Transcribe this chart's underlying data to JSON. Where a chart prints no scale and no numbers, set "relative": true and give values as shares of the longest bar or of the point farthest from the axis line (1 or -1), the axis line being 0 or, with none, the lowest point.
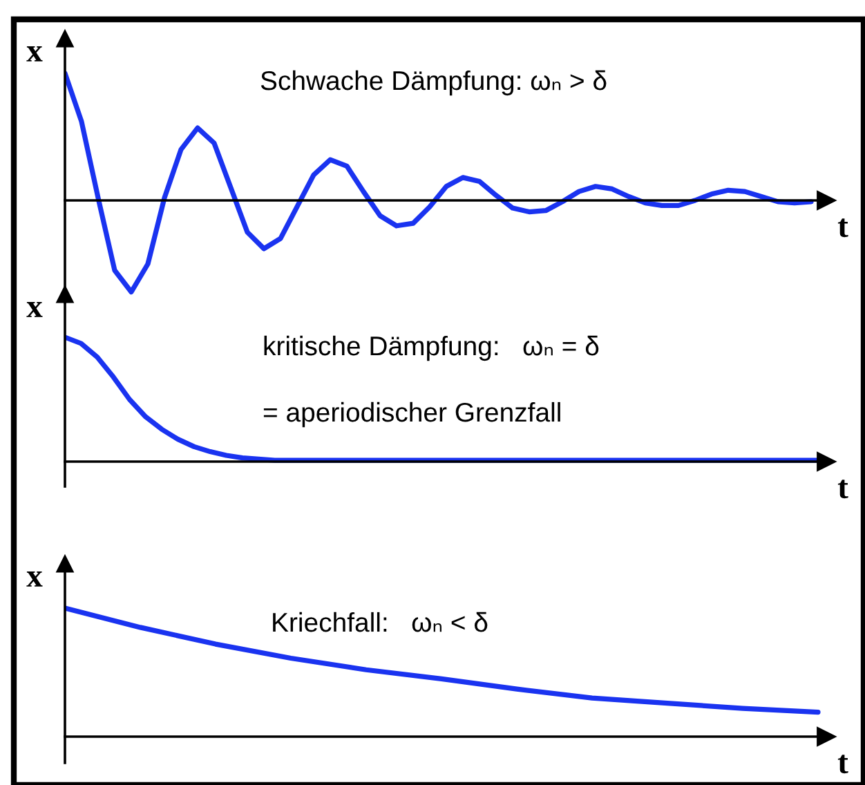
{
  "chart_data": [
    {
      "type": "line",
      "relative": true,
      "xlabel": "t",
      "ylabel": "x",
      "annotations": [
        "Schwache Dämpfung: ωₙ > δ"
      ],
      "categories": [
        null,
        null,
        null,
        null,
        null,
        null,
        null,
        null,
        null,
        null,
        null,
        null,
        null,
        null,
        null,
        null,
        null,
        null,
        null,
        null,
        null,
        null,
        null,
        null,
        null,
        null,
        null,
        null,
        null,
        null,
        null,
        null,
        null,
        null,
        null,
        null,
        null,
        null,
        null,
        null,
        null,
        null,
        null,
        null,
        null,
        null
      ],
      "series": [
        {
          "color": "#1a33f0",
          "values": [
            1.0,
            0.62,
            0.02,
            -0.55,
            -0.72,
            -0.5,
            0.02,
            0.4,
            0.57,
            0.45,
            0.1,
            -0.25,
            -0.38,
            -0.3,
            -0.05,
            0.2,
            0.32,
            0.27,
            0.07,
            -0.12,
            -0.2,
            -0.18,
            -0.05,
            0.11,
            0.18,
            0.15,
            0.04,
            -0.06,
            -0.09,
            -0.08,
            -0.01,
            0.07,
            0.11,
            0.09,
            0.03,
            -0.02,
            -0.04,
            -0.04,
            0.0,
            0.05,
            0.08,
            0.07,
            0.03,
            -0.01,
            -0.02,
            -0.01
          ]
        }
      ]
    },
    {
      "type": "line",
      "relative": true,
      "xlabel": "t",
      "ylabel": "x",
      "annotations": [
        "kritische Dämpfung:   ωₙ = δ",
        "= aperiodischer Grenzfall"
      ],
      "categories": [
        null,
        null,
        null,
        null,
        null,
        null,
        null,
        null,
        null,
        null,
        null,
        null,
        null,
        null,
        null,
        null,
        null,
        null,
        null,
        null,
        null,
        null,
        null,
        null,
        null,
        null,
        null,
        null,
        null,
        null,
        null,
        null,
        null,
        null,
        null,
        null,
        null,
        null,
        null,
        null,
        null,
        null,
        null,
        null,
        null,
        null,
        null,
        null
      ],
      "series": [
        {
          "color": "#1a33f0",
          "values": [
            1.0,
            0.95,
            0.84,
            0.68,
            0.5,
            0.36,
            0.26,
            0.18,
            0.12,
            0.08,
            0.05,
            0.03,
            0.02,
            0.01,
            0.01,
            0.01,
            0.01,
            0.01,
            0.01,
            0.01,
            0.01,
            0.01,
            0.01,
            0.01,
            0.01,
            0.01,
            0.01,
            0.01,
            0.01,
            0.01,
            0.01,
            0.01,
            0.01,
            0.01,
            0.01,
            0.01,
            0.01,
            0.01,
            0.01,
            0.01,
            0.01,
            0.01,
            0.01,
            0.01,
            0.01,
            0.01,
            0.01,
            0.01
          ]
        }
      ]
    },
    {
      "type": "line",
      "relative": true,
      "xlabel": "t",
      "ylabel": "x",
      "annotations": [
        "Kriechfall:   ωₙ < δ"
      ],
      "categories": [
        null,
        null,
        null,
        null,
        null,
        null,
        null,
        null,
        null,
        null,
        null
      ],
      "series": [
        {
          "color": "#1a33f0",
          "values": [
            1.0,
            0.85,
            0.72,
            0.61,
            0.52,
            0.45,
            0.37,
            0.3,
            0.26,
            0.22,
            0.19
          ]
        }
      ]
    }
  ]
}
